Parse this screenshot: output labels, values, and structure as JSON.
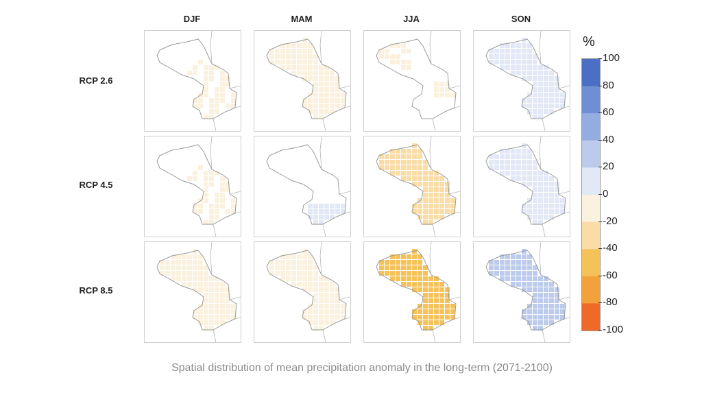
{
  "columns": [
    "DJF",
    "MAM",
    "JJA",
    "SON"
  ],
  "rows": [
    "RCP 2.6",
    "RCP 4.5",
    "RCP 8.5"
  ],
  "legend": {
    "unit": "%",
    "ticks": [
      "100",
      "80",
      "60",
      "40",
      "20",
      "0",
      "-20",
      "-40",
      "-60",
      "-80",
      "-100"
    ],
    "bands": [
      {
        "range": [
          80,
          100
        ],
        "color": "#4a6fc4"
      },
      {
        "range": [
          60,
          80
        ],
        "color": "#6f8ed3"
      },
      {
        "range": [
          40,
          60
        ],
        "color": "#94ade0"
      },
      {
        "range": [
          20,
          40
        ],
        "color": "#bccbec"
      },
      {
        "range": [
          0,
          20
        ],
        "color": "#e2e8f6"
      },
      {
        "range": [
          -20,
          0
        ],
        "color": "#fbf1df"
      },
      {
        "range": [
          -40,
          -20
        ],
        "color": "#f9dca6"
      },
      {
        "range": [
          -60,
          -40
        ],
        "color": "#f5c25a"
      },
      {
        "range": [
          -80,
          -60
        ],
        "color": "#f3a13a"
      },
      {
        "range": [
          -100,
          -80
        ],
        "color": "#ef6a28"
      }
    ]
  },
  "panels": [
    {
      "scenario": "RCP 2.6",
      "season": "DJF",
      "coverage": "partial-east",
      "anomaly_pct": -10
    },
    {
      "scenario": "RCP 2.6",
      "season": "MAM",
      "coverage": "full",
      "anomaly_pct": -10
    },
    {
      "scenario": "RCP 2.6",
      "season": "JJA",
      "coverage": "partial-west",
      "anomaly_pct": -15
    },
    {
      "scenario": "RCP 2.6",
      "season": "SON",
      "coverage": "full",
      "anomaly_pct": 10
    },
    {
      "scenario": "RCP 4.5",
      "season": "DJF",
      "coverage": "partial-east",
      "anomaly_pct": -10
    },
    {
      "scenario": "RCP 4.5",
      "season": "MAM",
      "coverage": "southeast",
      "anomaly_pct": 15
    },
    {
      "scenario": "RCP 4.5",
      "season": "JJA",
      "coverage": "full",
      "anomaly_pct": -25
    },
    {
      "scenario": "RCP 4.5",
      "season": "SON",
      "coverage": "full",
      "anomaly_pct": 10
    },
    {
      "scenario": "RCP 8.5",
      "season": "DJF",
      "coverage": "full",
      "anomaly_pct": -12
    },
    {
      "scenario": "RCP 8.5",
      "season": "MAM",
      "coverage": "full",
      "anomaly_pct": -10
    },
    {
      "scenario": "RCP 8.5",
      "season": "JJA",
      "coverage": "full",
      "anomaly_pct": -45
    },
    {
      "scenario": "RCP 8.5",
      "season": "SON",
      "coverage": "full",
      "anomaly_pct": 35
    }
  ],
  "caption": "Spatial distribution of mean precipitation anomaly in the long-term (2071-2100)"
}
